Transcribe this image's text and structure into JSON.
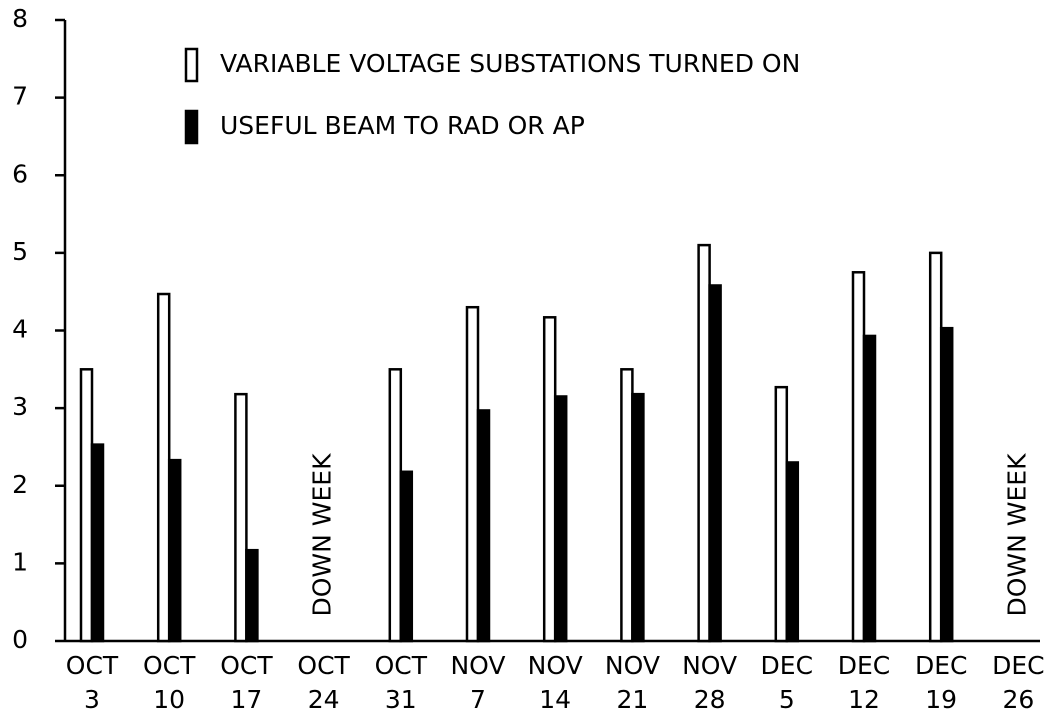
{
  "chart_data": {
    "type": "bar",
    "categories": [
      "OCT 3",
      "OCT 10",
      "OCT 17",
      "OCT 24",
      "OCT 31",
      "NOV 7",
      "NOV 14",
      "NOV 21",
      "NOV 28",
      "DEC 5",
      "DEC 12",
      "DEC 19",
      "DEC 26"
    ],
    "series": [
      {
        "name": "VARIABLE VOLTAGE SUBSTATIONS TURNED ON",
        "color": "#ffffff",
        "values": [
          3.5,
          4.47,
          3.18,
          null,
          3.5,
          4.3,
          4.17,
          3.5,
          5.1,
          3.27,
          4.75,
          5.0,
          null
        ]
      },
      {
        "name": "USEFUL BEAM TO RAD OR AP",
        "color": "#000000",
        "values": [
          2.53,
          2.33,
          1.17,
          null,
          2.18,
          2.97,
          3.15,
          3.18,
          4.58,
          2.3,
          3.93,
          4.03,
          null
        ]
      }
    ],
    "annotations": [
      {
        "text": "DOWN WEEK",
        "x": "OCT 24"
      },
      {
        "text": "DOWN WEEK",
        "x": "DEC 26"
      }
    ],
    "ylim": [
      0,
      8
    ],
    "yticks": [
      0,
      1,
      2,
      3,
      4,
      5,
      6,
      7,
      8
    ],
    "grid": false,
    "legend": "upper left"
  }
}
